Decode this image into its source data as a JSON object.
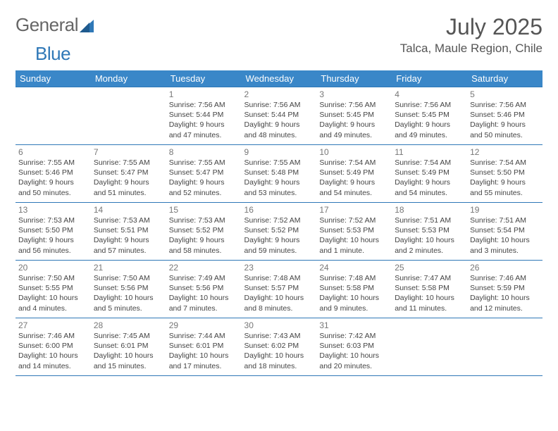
{
  "brand": {
    "part1": "General",
    "part2": "Blue"
  },
  "title": "July 2025",
  "location": "Talca, Maule Region, Chile",
  "header_bg": "#3a87c8",
  "border_color": "#2f78b7",
  "weekdays": [
    "Sunday",
    "Monday",
    "Tuesday",
    "Wednesday",
    "Thursday",
    "Friday",
    "Saturday"
  ],
  "weeks": [
    [
      null,
      null,
      {
        "n": "1",
        "sr": "7:56 AM",
        "ss": "5:44 PM",
        "dl": "9 hours and 47 minutes."
      },
      {
        "n": "2",
        "sr": "7:56 AM",
        "ss": "5:44 PM",
        "dl": "9 hours and 48 minutes."
      },
      {
        "n": "3",
        "sr": "7:56 AM",
        "ss": "5:45 PM",
        "dl": "9 hours and 49 minutes."
      },
      {
        "n": "4",
        "sr": "7:56 AM",
        "ss": "5:45 PM",
        "dl": "9 hours and 49 minutes."
      },
      {
        "n": "5",
        "sr": "7:56 AM",
        "ss": "5:46 PM",
        "dl": "9 hours and 50 minutes."
      }
    ],
    [
      {
        "n": "6",
        "sr": "7:55 AM",
        "ss": "5:46 PM",
        "dl": "9 hours and 50 minutes."
      },
      {
        "n": "7",
        "sr": "7:55 AM",
        "ss": "5:47 PM",
        "dl": "9 hours and 51 minutes."
      },
      {
        "n": "8",
        "sr": "7:55 AM",
        "ss": "5:47 PM",
        "dl": "9 hours and 52 minutes."
      },
      {
        "n": "9",
        "sr": "7:55 AM",
        "ss": "5:48 PM",
        "dl": "9 hours and 53 minutes."
      },
      {
        "n": "10",
        "sr": "7:54 AM",
        "ss": "5:49 PM",
        "dl": "9 hours and 54 minutes."
      },
      {
        "n": "11",
        "sr": "7:54 AM",
        "ss": "5:49 PM",
        "dl": "9 hours and 54 minutes."
      },
      {
        "n": "12",
        "sr": "7:54 AM",
        "ss": "5:50 PM",
        "dl": "9 hours and 55 minutes."
      }
    ],
    [
      {
        "n": "13",
        "sr": "7:53 AM",
        "ss": "5:50 PM",
        "dl": "9 hours and 56 minutes."
      },
      {
        "n": "14",
        "sr": "7:53 AM",
        "ss": "5:51 PM",
        "dl": "9 hours and 57 minutes."
      },
      {
        "n": "15",
        "sr": "7:53 AM",
        "ss": "5:52 PM",
        "dl": "9 hours and 58 minutes."
      },
      {
        "n": "16",
        "sr": "7:52 AM",
        "ss": "5:52 PM",
        "dl": "9 hours and 59 minutes."
      },
      {
        "n": "17",
        "sr": "7:52 AM",
        "ss": "5:53 PM",
        "dl": "10 hours and 1 minute."
      },
      {
        "n": "18",
        "sr": "7:51 AM",
        "ss": "5:53 PM",
        "dl": "10 hours and 2 minutes."
      },
      {
        "n": "19",
        "sr": "7:51 AM",
        "ss": "5:54 PM",
        "dl": "10 hours and 3 minutes."
      }
    ],
    [
      {
        "n": "20",
        "sr": "7:50 AM",
        "ss": "5:55 PM",
        "dl": "10 hours and 4 minutes."
      },
      {
        "n": "21",
        "sr": "7:50 AM",
        "ss": "5:56 PM",
        "dl": "10 hours and 5 minutes."
      },
      {
        "n": "22",
        "sr": "7:49 AM",
        "ss": "5:56 PM",
        "dl": "10 hours and 7 minutes."
      },
      {
        "n": "23",
        "sr": "7:48 AM",
        "ss": "5:57 PM",
        "dl": "10 hours and 8 minutes."
      },
      {
        "n": "24",
        "sr": "7:48 AM",
        "ss": "5:58 PM",
        "dl": "10 hours and 9 minutes."
      },
      {
        "n": "25",
        "sr": "7:47 AM",
        "ss": "5:58 PM",
        "dl": "10 hours and 11 minutes."
      },
      {
        "n": "26",
        "sr": "7:46 AM",
        "ss": "5:59 PM",
        "dl": "10 hours and 12 minutes."
      }
    ],
    [
      {
        "n": "27",
        "sr": "7:46 AM",
        "ss": "6:00 PM",
        "dl": "10 hours and 14 minutes."
      },
      {
        "n": "28",
        "sr": "7:45 AM",
        "ss": "6:01 PM",
        "dl": "10 hours and 15 minutes."
      },
      {
        "n": "29",
        "sr": "7:44 AM",
        "ss": "6:01 PM",
        "dl": "10 hours and 17 minutes."
      },
      {
        "n": "30",
        "sr": "7:43 AM",
        "ss": "6:02 PM",
        "dl": "10 hours and 18 minutes."
      },
      {
        "n": "31",
        "sr": "7:42 AM",
        "ss": "6:03 PM",
        "dl": "10 hours and 20 minutes."
      },
      null,
      null
    ]
  ],
  "labels": {
    "sunrise": "Sunrise:",
    "sunset": "Sunset:",
    "daylight": "Daylight:"
  }
}
